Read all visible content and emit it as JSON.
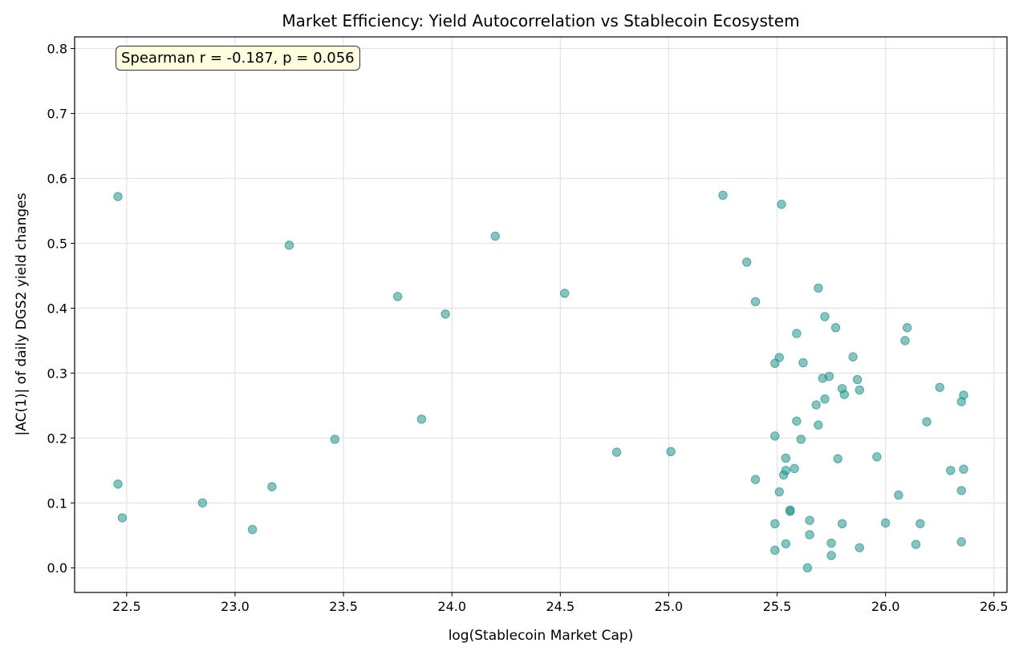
{
  "chart_data": {
    "type": "scatter",
    "title": "Market Efficiency: Yield Autocorrelation vs Stablecoin Ecosystem",
    "xlabel": "log(Stablecoin Market Cap)",
    "ylabel": "|AC(1)| of daily DGS2 yield changes",
    "xlim": [
      22.26,
      26.56
    ],
    "ylim": [
      -0.038,
      0.818
    ],
    "xticks": [
      22.5,
      23.0,
      23.5,
      24.0,
      24.5,
      25.0,
      25.5,
      26.0,
      26.5
    ],
    "yticks": [
      0.0,
      0.1,
      0.2,
      0.3,
      0.4,
      0.5,
      0.6,
      0.7,
      0.8
    ],
    "grid": true,
    "annotation": "Spearman r = -0.187, p = 0.056",
    "marker_color": "#20948b",
    "points": [
      [
        22.46,
        0.572
      ],
      [
        22.46,
        0.129
      ],
      [
        22.48,
        0.077
      ],
      [
        22.85,
        0.1
      ],
      [
        23.08,
        0.059
      ],
      [
        23.17,
        0.125
      ],
      [
        23.25,
        0.497
      ],
      [
        23.46,
        0.198
      ],
      [
        23.75,
        0.418
      ],
      [
        23.86,
        0.229
      ],
      [
        23.97,
        0.391
      ],
      [
        24.2,
        0.511
      ],
      [
        24.52,
        0.423
      ],
      [
        24.76,
        0.178
      ],
      [
        25.01,
        0.179
      ],
      [
        25.25,
        0.574
      ],
      [
        25.36,
        0.471
      ],
      [
        25.4,
        0.41
      ],
      [
        25.52,
        0.56
      ],
      [
        25.69,
        0.431
      ],
      [
        25.72,
        0.387
      ],
      [
        25.77,
        0.37
      ],
      [
        26.1,
        0.37
      ],
      [
        25.59,
        0.361
      ],
      [
        26.09,
        0.35
      ],
      [
        25.51,
        0.324
      ],
      [
        25.49,
        0.315
      ],
      [
        25.62,
        0.316
      ],
      [
        25.85,
        0.325
      ],
      [
        25.71,
        0.292
      ],
      [
        25.74,
        0.295
      ],
      [
        25.87,
        0.29
      ],
      [
        25.8,
        0.276
      ],
      [
        25.81,
        0.267
      ],
      [
        25.88,
        0.274
      ],
      [
        26.25,
        0.278
      ],
      [
        26.36,
        0.266
      ],
      [
        26.35,
        0.256
      ],
      [
        25.72,
        0.26
      ],
      [
        25.68,
        0.251
      ],
      [
        25.59,
        0.226
      ],
      [
        25.69,
        0.22
      ],
      [
        26.19,
        0.225
      ],
      [
        25.49,
        0.203
      ],
      [
        25.61,
        0.198
      ],
      [
        25.54,
        0.169
      ],
      [
        25.78,
        0.168
      ],
      [
        25.96,
        0.171
      ],
      [
        25.54,
        0.15
      ],
      [
        25.53,
        0.143
      ],
      [
        25.58,
        0.153
      ],
      [
        25.4,
        0.136
      ],
      [
        26.3,
        0.15
      ],
      [
        26.36,
        0.152
      ],
      [
        25.51,
        0.117
      ],
      [
        26.35,
        0.119
      ],
      [
        26.06,
        0.112
      ],
      [
        25.56,
        0.089
      ],
      [
        25.56,
        0.087
      ],
      [
        25.49,
        0.068
      ],
      [
        25.65,
        0.073
      ],
      [
        25.8,
        0.068
      ],
      [
        26.0,
        0.069
      ],
      [
        26.16,
        0.068
      ],
      [
        25.65,
        0.051
      ],
      [
        25.54,
        0.037
      ],
      [
        25.49,
        0.027
      ],
      [
        25.75,
        0.038
      ],
      [
        25.88,
        0.031
      ],
      [
        26.14,
        0.036
      ],
      [
        26.35,
        0.04
      ],
      [
        25.75,
        0.019
      ],
      [
        25.64,
        0.0
      ]
    ]
  }
}
